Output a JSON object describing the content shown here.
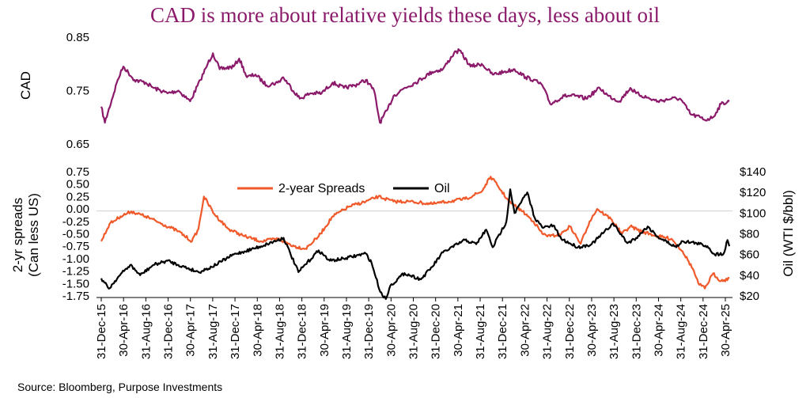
{
  "title": "CAD is more about relative yields these days, less about oil",
  "source": "Source: Bloomberg, Purpose Investments",
  "colors": {
    "cad": "#8b1a6b",
    "spreads": "#f0592a",
    "oil": "#000000",
    "title": "#8b1a6b"
  },
  "chart_data": [
    {
      "type": "line",
      "ylabel": "CAD",
      "ylim": [
        0.65,
        0.85
      ],
      "yticks": [
        "0.85",
        "0.75",
        "0.65"
      ],
      "grid": false,
      "series": [
        {
          "x": [
            "2015-12-31",
            "2016-01-20",
            "2016-03-31",
            "2016-05-01",
            "2016-07-01",
            "2016-09-01",
            "2016-10-15",
            "2016-12-31",
            "2017-03-01",
            "2017-05-05",
            "2017-07-01",
            "2017-08-10",
            "2017-09-08",
            "2017-10-15",
            "2017-12-31",
            "2018-01-31",
            "2018-03-15",
            "2018-05-01",
            "2018-07-01",
            "2018-09-01",
            "2018-10-01",
            "2018-12-31",
            "2019-03-01",
            "2019-05-01",
            "2019-07-01",
            "2019-09-01",
            "2019-11-01",
            "2020-01-01",
            "2020-02-15",
            "2020-03-18",
            "2020-04-30",
            "2020-06-01",
            "2020-08-01",
            "2020-10-01",
            "2020-12-31",
            "2021-03-01",
            "2021-05-01",
            "2021-06-01",
            "2021-08-01",
            "2021-10-01",
            "2021-12-01",
            "2022-02-01",
            "2022-04-01",
            "2022-06-01",
            "2022-07-15",
            "2022-09-01",
            "2022-10-15",
            "2022-12-31",
            "2023-03-01",
            "2023-05-01",
            "2023-07-15",
            "2023-09-01",
            "2023-11-01",
            "2023-12-31",
            "2024-02-01",
            "2024-04-15",
            "2024-06-01",
            "2024-08-15",
            "2024-10-01",
            "2024-12-01",
            "2025-01-20",
            "2025-02-15",
            "2025-04-01",
            "2025-05-15",
            "2025-06-30"
          ],
          "y": [
            0.72,
            0.69,
            0.77,
            0.795,
            0.77,
            0.765,
            0.755,
            0.745,
            0.75,
            0.73,
            0.77,
            0.8,
            0.82,
            0.79,
            0.795,
            0.81,
            0.775,
            0.78,
            0.76,
            0.765,
            0.775,
            0.735,
            0.745,
            0.745,
            0.765,
            0.755,
            0.76,
            0.77,
            0.75,
            0.69,
            0.715,
            0.74,
            0.755,
            0.765,
            0.785,
            0.79,
            0.82,
            0.825,
            0.795,
            0.8,
            0.78,
            0.785,
            0.79,
            0.775,
            0.77,
            0.76,
            0.725,
            0.74,
            0.74,
            0.735,
            0.755,
            0.74,
            0.73,
            0.755,
            0.745,
            0.735,
            0.73,
            0.735,
            0.735,
            0.705,
            0.7,
            0.695,
            0.7,
            0.725,
            0.73
          ]
        }
      ]
    },
    {
      "type": "line",
      "ylabel": "2-yr spreads\n(Can less US)",
      "y2label": "Oil (WTI $/bbl)",
      "ylim": [
        -1.75,
        0.75
      ],
      "y2lim": [
        20,
        140
      ],
      "yticks": [
        "0.75",
        "0.50",
        "0.25",
        "0.00",
        "-0.25",
        "-0.50",
        "-0.75",
        "-1.00",
        "-1.25",
        "-1.50",
        "-1.75"
      ],
      "y2ticks": [
        "$140",
        "$120",
        "$100",
        "$80",
        "$60",
        "$40",
        "$20"
      ],
      "xticks": [
        "31-Dec-15",
        "30-Apr-16",
        "31-Aug-16",
        "31-Dec-16",
        "30-Apr-17",
        "31-Aug-17",
        "31-Dec-17",
        "30-Apr-18",
        "31-Aug-18",
        "31-Dec-18",
        "30-Apr-19",
        "31-Aug-19",
        "31-Dec-19",
        "30-Apr-20",
        "31-Aug-20",
        "31-Dec-20",
        "30-Apr-21",
        "31-Aug-21",
        "31-Dec-21",
        "30-Apr-22",
        "31-Aug-22",
        "31-Dec-22",
        "30-Apr-23",
        "31-Aug-23",
        "31-Dec-23",
        "30-Apr-24",
        "31-Aug-24",
        "31-Dec-24",
        "30-Apr-25"
      ],
      "legend": {
        "position": "top-center"
      },
      "grid": false,
      "series": [
        {
          "name": "2-year Spreads",
          "axis": "left",
          "x": [
            "2015-12-31",
            "2016-02-15",
            "2016-04-15",
            "2016-06-15",
            "2016-09-01",
            "2016-12-01",
            "2017-03-01",
            "2017-05-15",
            "2017-06-20",
            "2017-07-20",
            "2017-09-15",
            "2017-12-01",
            "2018-03-01",
            "2018-06-01",
            "2018-09-01",
            "2018-12-01",
            "2019-02-01",
            "2019-04-15",
            "2019-07-01",
            "2019-10-01",
            "2019-12-31",
            "2020-03-10",
            "2020-06-01",
            "2020-09-01",
            "2020-12-31",
            "2021-04-01",
            "2021-07-01",
            "2021-10-01",
            "2021-11-20",
            "2022-01-01",
            "2022-03-01",
            "2022-05-15",
            "2022-07-15",
            "2022-09-01",
            "2022-10-15",
            "2022-12-15",
            "2023-02-01",
            "2023-04-01",
            "2023-05-20",
            "2023-07-01",
            "2023-09-15",
            "2023-11-15",
            "2023-12-31",
            "2024-03-01",
            "2024-06-01",
            "2024-08-15",
            "2024-10-15",
            "2024-12-10",
            "2025-01-10",
            "2025-02-15",
            "2025-04-01",
            "2025-05-15",
            "2025-06-30"
          ],
          "y": [
            -0.65,
            -0.3,
            -0.15,
            -0.05,
            -0.15,
            -0.3,
            -0.45,
            -0.65,
            -0.4,
            0.25,
            -0.1,
            -0.4,
            -0.55,
            -0.65,
            -0.6,
            -0.75,
            -0.8,
            -0.55,
            -0.15,
            0.05,
            0.15,
            0.25,
            0.15,
            0.15,
            0.1,
            0.15,
            0.2,
            0.35,
            0.65,
            0.45,
            0.15,
            -0.05,
            -0.25,
            -0.5,
            -0.55,
            -0.5,
            -0.35,
            -0.7,
            -0.25,
            0.0,
            -0.2,
            -0.5,
            -0.35,
            -0.45,
            -0.55,
            -0.6,
            -0.85,
            -1.2,
            -1.5,
            -1.6,
            -1.3,
            -1.45,
            -1.4
          ]
        },
        {
          "name": "Oil",
          "axis": "right",
          "x": [
            "2015-12-31",
            "2016-02-11",
            "2016-04-01",
            "2016-06-08",
            "2016-08-02",
            "2016-10-15",
            "2016-12-31",
            "2017-03-01",
            "2017-06-21",
            "2017-09-01",
            "2017-12-31",
            "2018-03-01",
            "2018-06-01",
            "2018-10-03",
            "2018-12-24",
            "2019-04-15",
            "2019-06-15",
            "2019-09-01",
            "2019-12-31",
            "2020-02-01",
            "2020-03-20",
            "2020-04-20",
            "2020-05-15",
            "2020-08-01",
            "2020-10-30",
            "2020-12-31",
            "2021-03-01",
            "2021-07-01",
            "2021-09-01",
            "2021-10-26",
            "2021-12-01",
            "2022-02-15",
            "2022-03-08",
            "2022-04-01",
            "2022-06-10",
            "2022-07-20",
            "2022-09-01",
            "2022-11-01",
            "2022-12-15",
            "2023-03-17",
            "2023-06-01",
            "2023-09-27",
            "2023-12-15",
            "2024-02-01",
            "2024-04-05",
            "2024-06-01",
            "2024-09-10",
            "2024-10-10",
            "2024-12-31",
            "2025-03-01",
            "2025-04-10",
            "2025-05-30",
            "2025-06-20",
            "2025-06-30"
          ],
          "y": [
            37,
            27,
            38,
            50,
            40,
            50,
            54,
            50,
            43,
            48,
            60,
            63,
            68,
            76,
            43,
            64,
            54,
            56,
            61,
            52,
            24,
            17,
            30,
            42,
            36,
            48,
            62,
            74,
            70,
            84,
            67,
            92,
            123,
            100,
            120,
            96,
            86,
            88,
            75,
            67,
            70,
            90,
            71,
            76,
            87,
            77,
            67,
            73,
            71,
            68,
            60,
            61,
            74,
            68
          ]
        }
      ]
    }
  ]
}
